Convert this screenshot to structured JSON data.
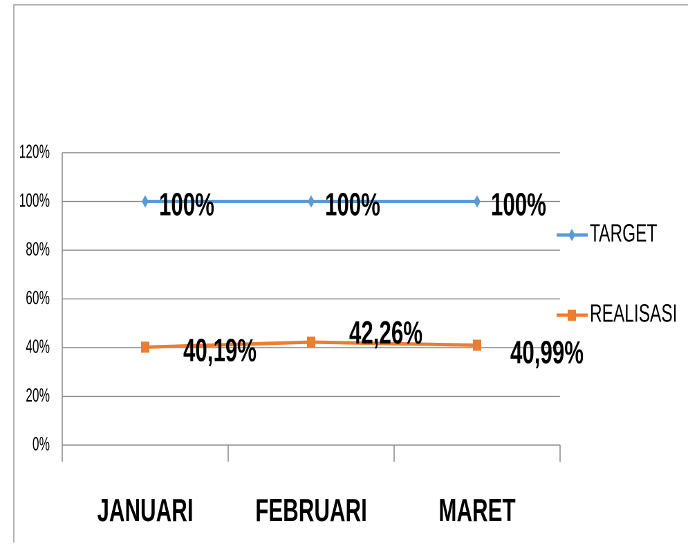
{
  "chart_data": {
    "type": "line",
    "categories": [
      "JANUARI",
      "FEBRUARI",
      "MARET"
    ],
    "series": [
      {
        "name": "TARGET",
        "color": "#5b9bd5",
        "values": [
          100,
          100,
          100
        ],
        "value_labels": [
          "100%",
          "100%",
          "100%"
        ]
      },
      {
        "name": "REALISASI",
        "color": "#ed7d31",
        "values": [
          40.19,
          42.26,
          40.99
        ],
        "value_labels": [
          "40,19%",
          "42,26%",
          "40,99%"
        ]
      }
    ],
    "ylim": [
      0,
      120
    ],
    "yticks": [
      {
        "value": 0,
        "label": "0%"
      },
      {
        "value": 20,
        "label": "20%"
      },
      {
        "value": 40,
        "label": "40%"
      },
      {
        "value": 60,
        "label": "60%"
      },
      {
        "value": 80,
        "label": "80%"
      },
      {
        "value": 100,
        "label": "100%"
      },
      {
        "value": 120,
        "label": "120%"
      }
    ],
    "grid": true,
    "legend": "right"
  }
}
